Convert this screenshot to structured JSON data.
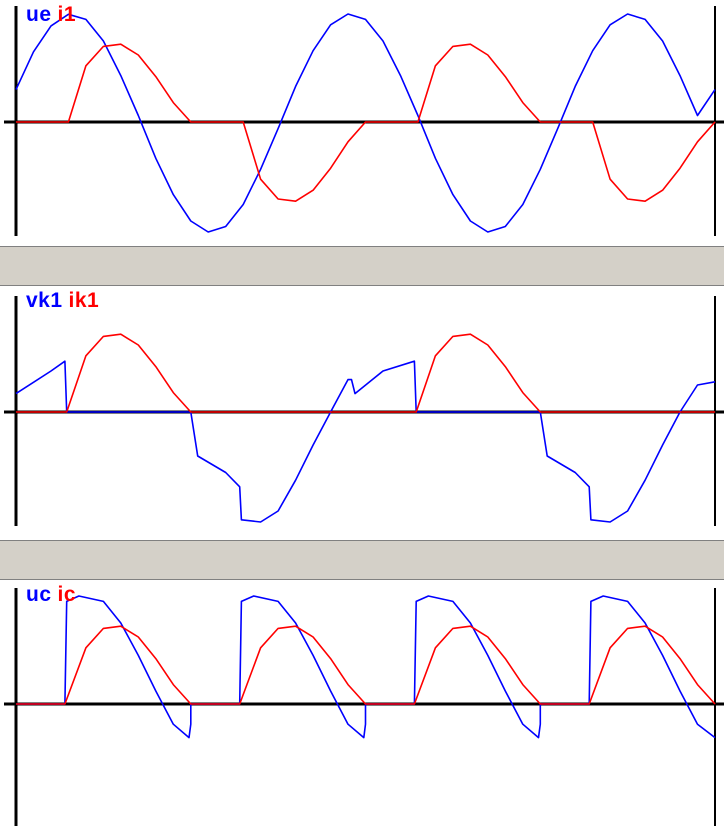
{
  "colors": {
    "series_a": "#0000ff",
    "series_b": "#ff0000",
    "axis": "#000000",
    "splitter": "#d4d0c8"
  },
  "panels": [
    {
      "legend": [
        "ue",
        "i1"
      ]
    },
    {
      "legend": [
        "vk1",
        "ik1"
      ]
    },
    {
      "legend": [
        "uc",
        "ic"
      ]
    }
  ],
  "chart_data": [
    {
      "type": "line",
      "title": "",
      "xlabel": "",
      "ylabel": "",
      "xlim": [
        0,
        2
      ],
      "ylim": [
        -1.1,
        1.1
      ],
      "grid": false,
      "legend_placement": "top-left",
      "series": [
        {
          "name": "ue",
          "color": "#0000ff",
          "points": [
            [
              0.0,
              0.3
            ],
            [
              0.05,
              0.65
            ],
            [
              0.1,
              0.89
            ],
            [
              0.15,
              0.997
            ],
            [
              0.2,
              0.95
            ],
            [
              0.25,
              0.75
            ],
            [
              0.3,
              0.43
            ],
            [
              0.35,
              0.06
            ],
            [
              0.4,
              -0.33
            ],
            [
              0.45,
              -0.66
            ],
            [
              0.5,
              -0.9
            ],
            [
              0.55,
              -1.0
            ],
            [
              0.6,
              -0.95
            ],
            [
              0.65,
              -0.75
            ],
            [
              0.7,
              -0.43
            ],
            [
              0.75,
              -0.06
            ],
            [
              0.8,
              0.33
            ],
            [
              0.85,
              0.66
            ],
            [
              0.9,
              0.9
            ],
            [
              0.95,
              1.0
            ],
            [
              1.0,
              0.95
            ],
            [
              1.05,
              0.75
            ],
            [
              1.1,
              0.43
            ],
            [
              1.15,
              0.06
            ],
            [
              1.2,
              -0.33
            ],
            [
              1.25,
              -0.66
            ],
            [
              1.3,
              -0.9
            ],
            [
              1.35,
              -1.0
            ],
            [
              1.4,
              -0.95
            ],
            [
              1.45,
              -0.75
            ],
            [
              1.5,
              -0.43
            ],
            [
              1.55,
              -0.06
            ],
            [
              1.6,
              0.33
            ],
            [
              1.65,
              0.66
            ],
            [
              1.7,
              0.9
            ],
            [
              1.75,
              1.0
            ],
            [
              1.8,
              0.95
            ],
            [
              1.85,
              0.75
            ],
            [
              1.9,
              0.43
            ],
            [
              1.95,
              0.06
            ],
            [
              2.0,
              0.3
            ]
          ]
        },
        {
          "name": "i1",
          "color": "#ff0000",
          "points": [
            [
              0.0,
              0.0
            ],
            [
              0.15,
              0.0
            ],
            [
              0.2,
              0.52
            ],
            [
              0.25,
              0.7
            ],
            [
              0.3,
              0.72
            ],
            [
              0.35,
              0.62
            ],
            [
              0.4,
              0.42
            ],
            [
              0.45,
              0.18
            ],
            [
              0.5,
              0.0
            ],
            [
              0.65,
              0.0
            ],
            [
              0.7,
              -0.52
            ],
            [
              0.75,
              -0.7
            ],
            [
              0.8,
              -0.72
            ],
            [
              0.85,
              -0.62
            ],
            [
              0.9,
              -0.42
            ],
            [
              0.95,
              -0.18
            ],
            [
              1.0,
              0.0
            ],
            [
              1.15,
              0.0
            ],
            [
              1.2,
              0.52
            ],
            [
              1.25,
              0.7
            ],
            [
              1.3,
              0.72
            ],
            [
              1.35,
              0.62
            ],
            [
              1.4,
              0.42
            ],
            [
              1.45,
              0.18
            ],
            [
              1.5,
              0.0
            ],
            [
              1.65,
              0.0
            ],
            [
              1.7,
              -0.52
            ],
            [
              1.75,
              -0.7
            ],
            [
              1.8,
              -0.72
            ],
            [
              1.85,
              -0.62
            ],
            [
              1.9,
              -0.42
            ],
            [
              1.95,
              -0.18
            ],
            [
              2.0,
              0.0
            ]
          ]
        }
      ]
    },
    {
      "type": "line",
      "title": "",
      "xlabel": "",
      "ylabel": "",
      "xlim": [
        0,
        2
      ],
      "ylim": [
        -1.1,
        1.1
      ],
      "grid": false,
      "legend_placement": "top-left",
      "series": [
        {
          "name": "vk1",
          "color": "#0000ff",
          "points": [
            [
              0.0,
              0.17
            ],
            [
              0.1,
              0.38
            ],
            [
              0.14,
              0.47
            ],
            [
              0.145,
              0.0
            ],
            [
              0.5,
              0.0
            ],
            [
              0.52,
              -0.4
            ],
            [
              0.6,
              -0.55
            ],
            [
              0.64,
              -0.68
            ],
            [
              0.645,
              -0.98
            ],
            [
              0.7,
              -1.0
            ],
            [
              0.75,
              -0.9
            ],
            [
              0.8,
              -0.62
            ],
            [
              0.85,
              -0.3
            ],
            [
              0.9,
              0.0
            ],
            [
              0.95,
              0.3
            ],
            [
              0.96,
              0.3
            ],
            [
              0.97,
              0.17
            ],
            [
              1.05,
              0.38
            ],
            [
              1.14,
              0.47
            ],
            [
              1.145,
              0.0
            ],
            [
              1.5,
              0.0
            ],
            [
              1.52,
              -0.4
            ],
            [
              1.6,
              -0.55
            ],
            [
              1.64,
              -0.68
            ],
            [
              1.645,
              -0.98
            ],
            [
              1.7,
              -1.0
            ],
            [
              1.75,
              -0.9
            ],
            [
              1.8,
              -0.62
            ],
            [
              1.85,
              -0.3
            ],
            [
              1.9,
              0.0
            ],
            [
              1.95,
              0.25
            ],
            [
              2.0,
              0.28
            ]
          ]
        },
        {
          "name": "ik1",
          "color": "#ff0000",
          "points": [
            [
              0.0,
              0.0
            ],
            [
              0.145,
              0.0
            ],
            [
              0.2,
              0.52
            ],
            [
              0.25,
              0.7
            ],
            [
              0.3,
              0.72
            ],
            [
              0.35,
              0.62
            ],
            [
              0.4,
              0.42
            ],
            [
              0.45,
              0.18
            ],
            [
              0.5,
              0.0
            ],
            [
              1.145,
              0.0
            ],
            [
              1.2,
              0.52
            ],
            [
              1.25,
              0.7
            ],
            [
              1.3,
              0.72
            ],
            [
              1.35,
              0.62
            ],
            [
              1.4,
              0.42
            ],
            [
              1.45,
              0.18
            ],
            [
              1.5,
              0.0
            ],
            [
              2.0,
              0.0
            ]
          ]
        }
      ]
    },
    {
      "type": "line",
      "title": "",
      "xlabel": "",
      "ylabel": "",
      "xlim": [
        0,
        2
      ],
      "ylim": [
        -1.1,
        1.1
      ],
      "grid": false,
      "legend_placement": "top-left",
      "series": [
        {
          "name": "uc",
          "color": "#0000ff",
          "points": [
            [
              0.0,
              0.0
            ],
            [
              0.14,
              0.0
            ],
            [
              0.145,
              0.95
            ],
            [
              0.18,
              1.0
            ],
            [
              0.25,
              0.95
            ],
            [
              0.3,
              0.75
            ],
            [
              0.35,
              0.45
            ],
            [
              0.4,
              0.12
            ],
            [
              0.45,
              -0.18
            ],
            [
              0.495,
              -0.3
            ],
            [
              0.5,
              -0.18
            ],
            [
              0.5,
              0.0
            ],
            [
              0.64,
              0.0
            ],
            [
              0.645,
              0.95
            ],
            [
              0.68,
              1.0
            ],
            [
              0.75,
              0.95
            ],
            [
              0.8,
              0.75
            ],
            [
              0.85,
              0.45
            ],
            [
              0.9,
              0.12
            ],
            [
              0.95,
              -0.18
            ],
            [
              0.995,
              -0.3
            ],
            [
              1.0,
              -0.18
            ],
            [
              1.0,
              0.0
            ],
            [
              1.14,
              0.0
            ],
            [
              1.145,
              0.95
            ],
            [
              1.18,
              1.0
            ],
            [
              1.25,
              0.95
            ],
            [
              1.3,
              0.75
            ],
            [
              1.35,
              0.45
            ],
            [
              1.4,
              0.12
            ],
            [
              1.45,
              -0.18
            ],
            [
              1.495,
              -0.3
            ],
            [
              1.5,
              -0.18
            ],
            [
              1.5,
              0.0
            ],
            [
              1.64,
              0.0
            ],
            [
              1.645,
              0.95
            ],
            [
              1.68,
              1.0
            ],
            [
              1.75,
              0.95
            ],
            [
              1.8,
              0.75
            ],
            [
              1.85,
              0.45
            ],
            [
              1.9,
              0.12
            ],
            [
              1.95,
              -0.18
            ],
            [
              2.0,
              -0.3
            ]
          ]
        },
        {
          "name": "ic",
          "color": "#ff0000",
          "points": [
            [
              0.0,
              0.0
            ],
            [
              0.14,
              0.0
            ],
            [
              0.2,
              0.52
            ],
            [
              0.25,
              0.7
            ],
            [
              0.3,
              0.72
            ],
            [
              0.35,
              0.62
            ],
            [
              0.4,
              0.42
            ],
            [
              0.45,
              0.18
            ],
            [
              0.5,
              0.0
            ],
            [
              0.64,
              0.0
            ],
            [
              0.7,
              0.52
            ],
            [
              0.75,
              0.7
            ],
            [
              0.8,
              0.72
            ],
            [
              0.85,
              0.62
            ],
            [
              0.9,
              0.42
            ],
            [
              0.95,
              0.18
            ],
            [
              1.0,
              0.0
            ],
            [
              1.14,
              0.0
            ],
            [
              1.2,
              0.52
            ],
            [
              1.25,
              0.7
            ],
            [
              1.3,
              0.72
            ],
            [
              1.35,
              0.62
            ],
            [
              1.4,
              0.42
            ],
            [
              1.45,
              0.18
            ],
            [
              1.5,
              0.0
            ],
            [
              1.64,
              0.0
            ],
            [
              1.7,
              0.52
            ],
            [
              1.75,
              0.7
            ],
            [
              1.8,
              0.72
            ],
            [
              1.85,
              0.62
            ],
            [
              1.9,
              0.42
            ],
            [
              1.95,
              0.18
            ],
            [
              2.0,
              0.0
            ]
          ]
        }
      ]
    }
  ]
}
